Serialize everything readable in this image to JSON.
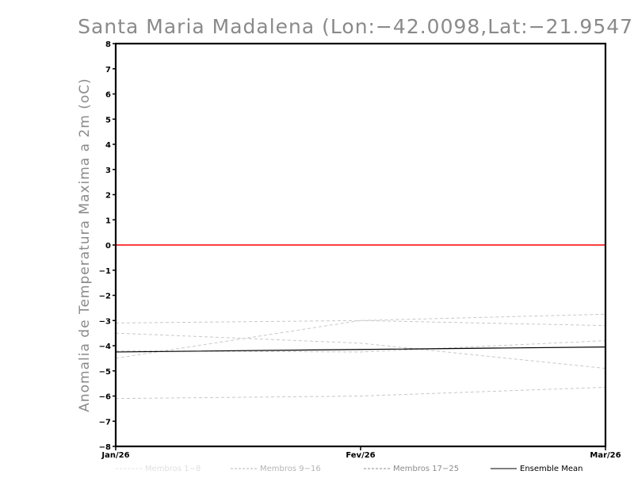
{
  "chart_data": {
    "type": "line",
    "title": "Santa Maria Madalena (Lon:−42.0098,Lat:−21.9547)",
    "ylabel": "Anomalia de Temperatura Maxima a 2m (oC)",
    "xlabel": "",
    "x": [
      "Jan/26",
      "Fev/26",
      "Mar/26"
    ],
    "ylim": [
      -8,
      8
    ],
    "yticks": [
      8,
      7,
      6,
      5,
      4,
      3,
      2,
      1,
      0,
      -1,
      -2,
      -3,
      -4,
      -5,
      -6,
      -7,
      -8
    ],
    "grid": false,
    "reference_line": {
      "value": 0,
      "color": "#ff0000"
    },
    "members": [
      {
        "values": [
          -3.1,
          -3.0,
          -3.2
        ]
      },
      {
        "values": [
          -3.5,
          -3.9,
          -4.9
        ]
      },
      {
        "values": [
          -4.5,
          -3.0,
          -2.75
        ]
      },
      {
        "values": [
          -4.2,
          -4.25,
          -3.8
        ]
      },
      {
        "values": [
          -6.1,
          -6.0,
          -5.65
        ]
      }
    ],
    "ensemble_mean": {
      "values": [
        -4.25,
        -4.15,
        -4.05
      ]
    },
    "colors": {
      "members": "#c8c8c8",
      "mean": "#000000",
      "zero_line": "#ff0000"
    },
    "legend": [
      {
        "label": "Membros 1-8",
        "color": "#e0e0e0"
      },
      {
        "label": "Membros 9-16",
        "color": "#b4b4b4"
      },
      {
        "label": "Membros 17-25",
        "color": "#8c8c8c"
      },
      {
        "label": "Ensemble Mean",
        "color": "#000000"
      }
    ],
    "legend_position": "bottom"
  }
}
